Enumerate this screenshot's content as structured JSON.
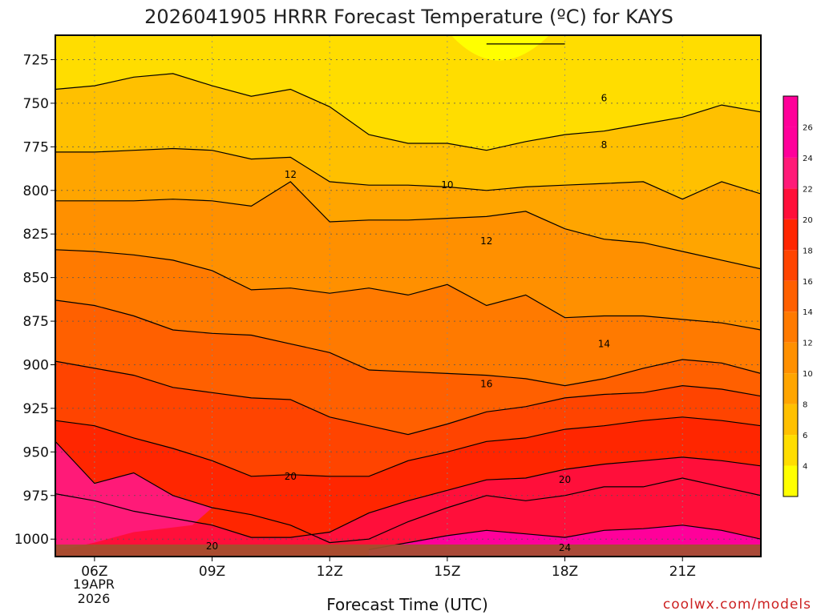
{
  "title": "2026041905 HRRR Forecast Temperature (ºC) for KAYS",
  "credit": "coolwx.com/models",
  "chart_data": {
    "type": "heatmap",
    "title": "2026041905 HRRR Forecast Temperature (ºC) for KAYS",
    "xlabel": "Forecast Time (UTC)",
    "ylabel": "",
    "x_ticks": [
      "06Z",
      "09Z",
      "12Z",
      "15Z",
      "18Z",
      "21Z"
    ],
    "x_tick_hours": [
      6,
      9,
      12,
      15,
      18,
      21
    ],
    "x_date_lines": [
      "19APR",
      "2026"
    ],
    "xlim": [
      5,
      23
    ],
    "y_ticks": [
      725,
      750,
      775,
      800,
      825,
      850,
      875,
      900,
      925,
      950,
      975,
      1000
    ],
    "ylim": [
      1010,
      711
    ],
    "y_scale": "pressure (hPa), increasing downward",
    "colorbar_ticks": [
      4,
      6,
      8,
      10,
      12,
      14,
      16,
      18,
      20,
      22,
      24,
      26
    ],
    "colorbar_range": [
      2,
      28
    ],
    "contour_labels": [
      {
        "label": "6",
        "x": 19.0,
        "y": 747
      },
      {
        "label": "8",
        "x": 19.0,
        "y": 774
      },
      {
        "label": "10",
        "x": 15.0,
        "y": 797
      },
      {
        "label": "12",
        "x": 11.0,
        "y": 791
      },
      {
        "label": "12",
        "x": 16.0,
        "y": 829
      },
      {
        "label": "14",
        "x": 19.0,
        "y": 888
      },
      {
        "label": "16",
        "x": 16.0,
        "y": 911
      },
      {
        "label": "20",
        "x": 11.0,
        "y": 964
      },
      {
        "label": "20",
        "x": 18.0,
        "y": 966
      },
      {
        "label": "20",
        "x": 9.0,
        "y": 1004
      },
      {
        "label": "24",
        "x": 18.0,
        "y": 1005
      }
    ],
    "series": [
      {
        "name": "4",
        "values": [
          [
            16,
            716
          ],
          [
            16.3,
            716
          ],
          [
            17.5,
            716
          ],
          [
            18,
            716
          ]
        ]
      },
      {
        "name": "6",
        "values": [
          [
            5,
            742
          ],
          [
            6,
            740
          ],
          [
            7,
            735
          ],
          [
            8,
            733
          ],
          [
            9,
            740
          ],
          [
            10,
            746
          ],
          [
            11,
            742
          ],
          [
            12,
            752
          ],
          [
            13,
            768
          ],
          [
            14,
            773
          ],
          [
            15,
            773
          ],
          [
            16,
            777
          ],
          [
            17,
            772
          ],
          [
            18,
            768
          ],
          [
            19,
            766
          ],
          [
            20,
            762
          ],
          [
            21,
            758
          ],
          [
            22,
            751
          ],
          [
            23,
            755
          ]
        ]
      },
      {
        "name": "8",
        "values": [
          [
            5,
            778
          ],
          [
            6,
            778
          ],
          [
            7,
            777
          ],
          [
            8,
            776
          ],
          [
            9,
            777
          ],
          [
            10,
            782
          ],
          [
            11,
            781
          ],
          [
            12,
            795
          ],
          [
            13,
            797
          ],
          [
            14,
            797
          ],
          [
            15,
            798
          ],
          [
            16,
            800
          ],
          [
            17,
            798
          ],
          [
            18,
            797
          ],
          [
            19,
            796
          ],
          [
            20,
            795
          ],
          [
            21,
            805
          ],
          [
            22,
            795
          ],
          [
            23,
            802
          ]
        ]
      },
      {
        "name": "10",
        "values": [
          [
            5,
            806
          ],
          [
            6,
            806
          ],
          [
            7,
            806
          ],
          [
            8,
            805
          ],
          [
            9,
            806
          ],
          [
            10,
            809
          ],
          [
            11,
            795
          ],
          [
            12,
            818
          ],
          [
            13,
            817
          ],
          [
            14,
            817
          ],
          [
            15,
            816
          ],
          [
            16,
            815
          ],
          [
            17,
            812
          ],
          [
            18,
            822
          ],
          [
            19,
            828
          ],
          [
            20,
            830
          ],
          [
            21,
            835
          ],
          [
            22,
            840
          ],
          [
            23,
            845
          ]
        ]
      },
      {
        "name": "12",
        "values": [
          [
            5,
            834
          ],
          [
            6,
            835
          ],
          [
            7,
            837
          ],
          [
            8,
            840
          ],
          [
            9,
            846
          ],
          [
            10,
            857
          ],
          [
            11,
            856
          ],
          [
            12,
            859
          ],
          [
            13,
            856
          ],
          [
            14,
            860
          ],
          [
            15,
            854
          ],
          [
            16,
            866
          ],
          [
            17,
            860
          ],
          [
            18,
            873
          ],
          [
            19,
            872
          ],
          [
            20,
            872
          ],
          [
            21,
            874
          ],
          [
            22,
            876
          ],
          [
            23,
            880
          ]
        ]
      },
      {
        "name": "14",
        "values": [
          [
            5,
            863
          ],
          [
            6,
            866
          ],
          [
            7,
            872
          ],
          [
            8,
            880
          ],
          [
            9,
            882
          ],
          [
            10,
            883
          ],
          [
            11,
            888
          ],
          [
            12,
            893
          ],
          [
            13,
            903
          ],
          [
            14,
            904
          ],
          [
            15,
            905
          ],
          [
            16,
            906
          ],
          [
            17,
            908
          ],
          [
            18,
            912
          ],
          [
            19,
            908
          ],
          [
            20,
            902
          ],
          [
            21,
            897
          ],
          [
            22,
            899
          ],
          [
            23,
            905
          ]
        ]
      },
      {
        "name": "16",
        "values": [
          [
            5,
            898
          ],
          [
            6,
            902
          ],
          [
            7,
            906
          ],
          [
            8,
            913
          ],
          [
            9,
            916
          ],
          [
            10,
            919
          ],
          [
            11,
            920
          ],
          [
            12,
            930
          ],
          [
            13,
            935
          ],
          [
            14,
            940
          ],
          [
            15,
            934
          ],
          [
            16,
            927
          ],
          [
            17,
            924
          ],
          [
            18,
            919
          ],
          [
            19,
            917
          ],
          [
            20,
            916
          ],
          [
            21,
            912
          ],
          [
            22,
            914
          ],
          [
            23,
            918
          ]
        ]
      },
      {
        "name": "18",
        "values": [
          [
            5,
            932
          ],
          [
            6,
            935
          ],
          [
            7,
            942
          ],
          [
            8,
            948
          ],
          [
            9,
            955
          ],
          [
            10,
            964
          ],
          [
            11,
            963
          ],
          [
            12,
            964
          ],
          [
            13,
            964
          ],
          [
            14,
            955
          ],
          [
            15,
            950
          ],
          [
            16,
            944
          ],
          [
            17,
            942
          ],
          [
            18,
            937
          ],
          [
            19,
            935
          ],
          [
            20,
            932
          ],
          [
            21,
            930
          ],
          [
            22,
            932
          ],
          [
            23,
            935
          ]
        ]
      },
      {
        "name": "20",
        "values": [
          [
            5,
            974
          ],
          [
            6,
            978
          ],
          [
            7,
            984
          ],
          [
            8,
            988
          ],
          [
            9,
            992
          ],
          [
            10,
            999
          ],
          [
            11,
            999
          ],
          [
            12,
            996
          ],
          [
            13,
            985
          ],
          [
            14,
            978
          ],
          [
            15,
            972
          ],
          [
            16,
            966
          ],
          [
            17,
            965
          ],
          [
            18,
            960
          ],
          [
            19,
            957
          ],
          [
            20,
            955
          ],
          [
            21,
            953
          ],
          [
            22,
            955
          ],
          [
            23,
            958
          ]
        ]
      },
      {
        "name": "22",
        "values": [
          [
            5,
            944
          ],
          [
            6,
            968
          ],
          [
            7,
            962
          ],
          [
            8,
            975
          ],
          [
            9,
            982
          ],
          [
            10,
            986
          ],
          [
            11,
            992
          ],
          [
            12,
            1002
          ],
          [
            13,
            1000
          ],
          [
            14,
            990
          ],
          [
            15,
            982
          ],
          [
            16,
            975
          ],
          [
            17,
            978
          ],
          [
            18,
            975
          ],
          [
            19,
            970
          ],
          [
            20,
            970
          ],
          [
            21,
            965
          ],
          [
            22,
            970
          ],
          [
            23,
            975
          ]
        ]
      },
      {
        "name": "24",
        "values": [
          [
            13,
            1006
          ],
          [
            14,
            1002
          ],
          [
            15,
            998
          ],
          [
            16,
            995
          ],
          [
            17,
            997
          ],
          [
            18,
            999
          ],
          [
            19,
            995
          ],
          [
            20,
            994
          ],
          [
            21,
            992
          ],
          [
            22,
            995
          ],
          [
            23,
            1000
          ]
        ]
      }
    ]
  }
}
